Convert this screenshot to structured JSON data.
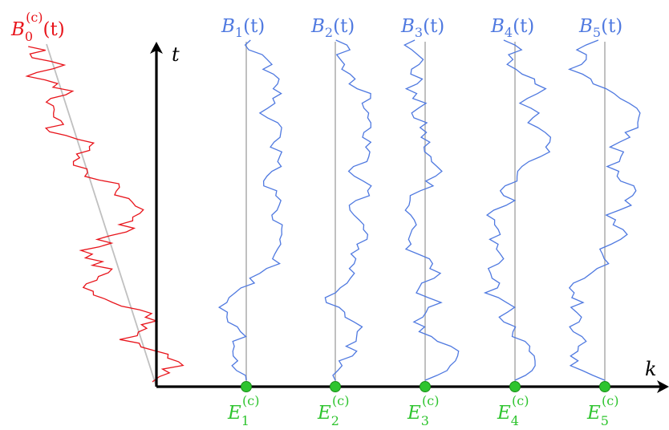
{
  "axes": {
    "x_label": "k",
    "y_label": "t"
  },
  "red_path": {
    "label_base": "B",
    "label_sub": "0",
    "label_sup": "(c)",
    "label_arg": "(t)",
    "color": "#e8141b"
  },
  "blue_paths": [
    {
      "label_base": "B",
      "label_sub": "1",
      "label_arg": "(t)"
    },
    {
      "label_base": "B",
      "label_sub": "2",
      "label_arg": "(t)"
    },
    {
      "label_base": "B",
      "label_sub": "3",
      "label_arg": "(t)"
    },
    {
      "label_base": "B",
      "label_sub": "4",
      "label_arg": "(t)"
    },
    {
      "label_base": "B",
      "label_sub": "5",
      "label_arg": "(t)"
    }
  ],
  "points": [
    {
      "base": "E",
      "sub": "1",
      "sup": "(c)"
    },
    {
      "base": "E",
      "sub": "2",
      "sup": "(c)"
    },
    {
      "base": "E",
      "sub": "3",
      "sup": "(c)"
    },
    {
      "base": "E",
      "sub": "4",
      "sup": "(c)"
    },
    {
      "base": "E",
      "sub": "5",
      "sup": "(c)"
    }
  ],
  "colors": {
    "blue": "#4f79e0",
    "red": "#e8141b",
    "green": "#2ec42e",
    "guide": "#c0c0c0",
    "axis": "#000000"
  }
}
